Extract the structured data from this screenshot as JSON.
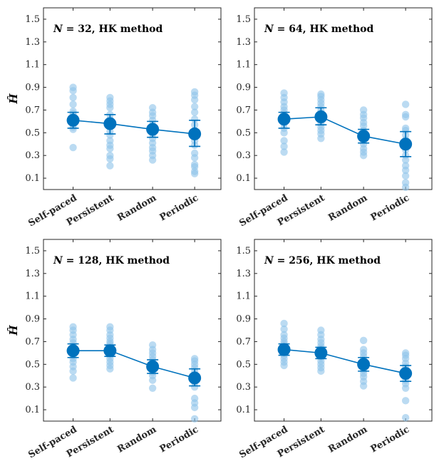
{
  "colors": {
    "accent": "#0072BD",
    "light": "#8EC3EA"
  },
  "chart_data": [
    {
      "type": "scatter",
      "title": "N = 32,  HK method",
      "title_parts": {
        "var": "N",
        "rest": " = 32,  HK method"
      },
      "ylabel": "Ĥ",
      "categories": [
        "Self-paced",
        "Persistent",
        "Random",
        "Periodic"
      ],
      "ylim": [
        0,
        1.6
      ],
      "yticks": [
        "0.1",
        "0.3",
        "0.5",
        "0.7",
        "0.9",
        "1.1",
        "1.3",
        "1.5"
      ],
      "mean": [
        0.61,
        0.58,
        0.53,
        0.49
      ],
      "error": [
        [
          0.54,
          0.68
        ],
        [
          0.49,
          0.66
        ],
        [
          0.46,
          0.6
        ],
        [
          0.38,
          0.61
        ]
      ],
      "points": [
        [
          0.37,
          0.53,
          0.55,
          0.57,
          0.59,
          0.6,
          0.62,
          0.64,
          0.65,
          0.67,
          0.69,
          0.75,
          0.81,
          0.87,
          0.9
        ],
        [
          0.21,
          0.27,
          0.3,
          0.36,
          0.39,
          0.43,
          0.48,
          0.51,
          0.55,
          0.59,
          0.62,
          0.66,
          0.72,
          0.75,
          0.78,
          0.81
        ],
        [
          0.26,
          0.3,
          0.34,
          0.37,
          0.41,
          0.45,
          0.49,
          0.53,
          0.57,
          0.61,
          0.65,
          0.68,
          0.72
        ],
        [
          0.14,
          0.16,
          0.2,
          0.22,
          0.28,
          0.32,
          0.39,
          0.43,
          0.48,
          0.52,
          0.57,
          0.62,
          0.68,
          0.73,
          0.79,
          0.83,
          0.86
        ]
      ]
    },
    {
      "type": "scatter",
      "title": "N = 64,  HK method",
      "title_parts": {
        "var": "N",
        "rest": " = 64,  HK method"
      },
      "ylabel": "",
      "categories": [
        "Self-paced",
        "Persistent",
        "Random",
        "Periodic"
      ],
      "ylim": [
        0,
        1.6
      ],
      "yticks": [
        "0.1",
        "0.3",
        "0.5",
        "0.7",
        "0.9",
        "1.1",
        "1.3",
        "1.5"
      ],
      "mean": [
        0.62,
        0.64,
        0.47,
        0.4
      ],
      "error": [
        [
          0.54,
          0.68
        ],
        [
          0.57,
          0.72
        ],
        [
          0.41,
          0.53
        ],
        [
          0.29,
          0.51
        ]
      ],
      "points": [
        [
          0.33,
          0.38,
          0.43,
          0.5,
          0.54,
          0.58,
          0.61,
          0.64,
          0.67,
          0.7,
          0.73,
          0.77,
          0.81,
          0.85
        ],
        [
          0.45,
          0.49,
          0.52,
          0.55,
          0.58,
          0.61,
          0.64,
          0.67,
          0.7,
          0.73,
          0.76,
          0.79,
          0.82,
          0.84
        ],
        [
          0.3,
          0.33,
          0.36,
          0.4,
          0.43,
          0.46,
          0.49,
          0.52,
          0.56,
          0.59,
          0.63,
          0.66,
          0.7
        ],
        [
          0.02,
          0.06,
          0.12,
          0.17,
          0.21,
          0.26,
          0.3,
          0.35,
          0.39,
          0.44,
          0.48,
          0.52,
          0.54,
          0.64,
          0.66,
          0.75
        ]
      ]
    },
    {
      "type": "scatter",
      "title": "N = 128,  HK method",
      "title_parts": {
        "var": "N",
        "rest": " = 128,  HK method"
      },
      "ylabel": "Ĥ",
      "categories": [
        "Self-paced",
        "Persistent",
        "Random",
        "Periodic"
      ],
      "ylim": [
        0,
        1.6
      ],
      "yticks": [
        "0.1",
        "0.3",
        "0.5",
        "0.7",
        "0.9",
        "1.1",
        "1.3",
        "1.5"
      ],
      "mean": [
        0.62,
        0.62,
        0.48,
        0.38
      ],
      "error": [
        [
          0.56,
          0.68
        ],
        [
          0.57,
          0.67
        ],
        [
          0.42,
          0.54
        ],
        [
          0.31,
          0.46
        ]
      ],
      "points": [
        [
          0.38,
          0.44,
          0.48,
          0.52,
          0.55,
          0.58,
          0.61,
          0.63,
          0.66,
          0.69,
          0.72,
          0.76,
          0.8,
          0.83
        ],
        [
          0.46,
          0.49,
          0.52,
          0.55,
          0.58,
          0.6,
          0.62,
          0.64,
          0.66,
          0.68,
          0.7,
          0.73,
          0.76,
          0.8,
          0.83
        ],
        [
          0.29,
          0.36,
          0.4,
          0.43,
          0.46,
          0.49,
          0.51,
          0.54,
          0.57,
          0.6,
          0.63,
          0.67
        ],
        [
          0.02,
          0.12,
          0.16,
          0.2,
          0.3,
          0.34,
          0.38,
          0.41,
          0.44,
          0.47,
          0.5,
          0.53,
          0.55
        ]
      ]
    },
    {
      "type": "scatter",
      "title": "N = 256,  HK method",
      "title_parts": {
        "var": "N",
        "rest": " = 256,  HK method"
      },
      "ylabel": "",
      "categories": [
        "Self-paced",
        "Persistent",
        "Random",
        "Periodic"
      ],
      "ylim": [
        0,
        1.6
      ],
      "yticks": [
        "0.1",
        "0.3",
        "0.5",
        "0.7",
        "0.9",
        "1.1",
        "1.3",
        "1.5"
      ],
      "mean": [
        0.63,
        0.6,
        0.5,
        0.42
      ],
      "error": [
        [
          0.58,
          0.68
        ],
        [
          0.55,
          0.65
        ],
        [
          0.44,
          0.56
        ],
        [
          0.35,
          0.49
        ]
      ],
      "points": [
        [
          0.49,
          0.52,
          0.55,
          0.58,
          0.6,
          0.62,
          0.64,
          0.66,
          0.68,
          0.7,
          0.73,
          0.76,
          0.81,
          0.86
        ],
        [
          0.44,
          0.47,
          0.5,
          0.53,
          0.56,
          0.58,
          0.6,
          0.62,
          0.64,
          0.66,
          0.69,
          0.72,
          0.76,
          0.8
        ],
        [
          0.31,
          0.35,
          0.39,
          0.42,
          0.45,
          0.48,
          0.51,
          0.54,
          0.57,
          0.6,
          0.63,
          0.71
        ],
        [
          0.03,
          0.18,
          0.29,
          0.33,
          0.36,
          0.39,
          0.42,
          0.45,
          0.48,
          0.51,
          0.55,
          0.58,
          0.6
        ]
      ]
    }
  ]
}
